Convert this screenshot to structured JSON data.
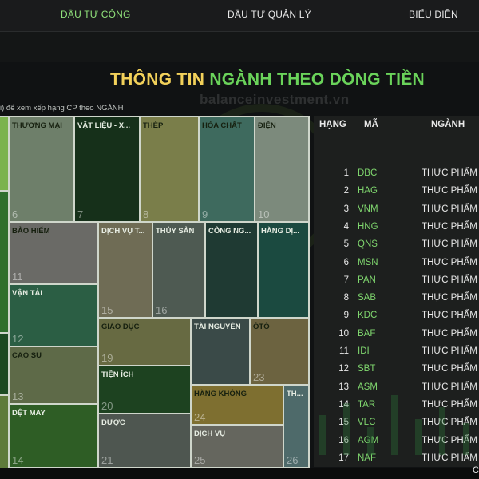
{
  "nav": {
    "items": [
      "ĐẦU TƯ CÔNG",
      "ĐẦU TƯ QUẢN LÝ",
      "BIỂU DIỄN"
    ]
  },
  "header": {
    "title_part1": "THÔNG TIN ",
    "title_part2": "NGÀNH THEO ",
    "title_part3": "DÒNG TIỀN",
    "watermark": "balanceinvestment.vn",
    "hint": "i) để xem xếp hạng CP theo NGÀNH"
  },
  "colors": {
    "accent_green": "#7fd66e",
    "title_yellow": "#f2d15a"
  },
  "treemap": {
    "cells": [
      {
        "name": "THƯƠNG MẠI",
        "num": "6"
      },
      {
        "name": "VẬT LIỆU - X...",
        "num": "7"
      },
      {
        "name": "THÉP",
        "num": "8"
      },
      {
        "name": "HÓA CHẤT",
        "num": "9"
      },
      {
        "name": "ĐIỆN",
        "num": "10"
      },
      {
        "name": "BẢO HIỂM",
        "num": "11"
      },
      {
        "name": "DỊCH VỤ T...",
        "num": "15"
      },
      {
        "name": "THỦY SẢN",
        "num": "16"
      },
      {
        "name": "CÔNG NG...",
        "num": ""
      },
      {
        "name": "HÀNG DỊ...",
        "num": ""
      },
      {
        "name": "VẬN TẢI",
        "num": "12"
      },
      {
        "name": "GIÁO DỤC",
        "num": "19"
      },
      {
        "name": "TÀI NGUYÊN",
        "num": ""
      },
      {
        "name": "ÔTÔ",
        "num": "23"
      },
      {
        "name": "CAO SU",
        "num": "13"
      },
      {
        "name": "TIỆN ÍCH",
        "num": "20"
      },
      {
        "name": "HÀNG KHÔNG",
        "num": "24"
      },
      {
        "name": "TH...",
        "num": ""
      },
      {
        "name": "DỆT MAY",
        "num": "14"
      },
      {
        "name": "DƯỢC",
        "num": "21"
      },
      {
        "name": "DỊCH VỤ",
        "num": "25"
      },
      {
        "name": "",
        "num": "26"
      },
      {
        "name": "",
        "num": ""
      },
      {
        "name": "",
        "num": ""
      },
      {
        "name": "",
        "num": ""
      }
    ]
  },
  "table": {
    "headers": {
      "rank": "HẠNG",
      "code": "MÃ",
      "sector": "NGÀNH"
    },
    "rows": [
      {
        "rank": "1",
        "code": "DBC",
        "sector": "THỰC PHẨM"
      },
      {
        "rank": "2",
        "code": "HAG",
        "sector": "THỰC PHẨM"
      },
      {
        "rank": "3",
        "code": "VNM",
        "sector": "THỰC PHẨM"
      },
      {
        "rank": "4",
        "code": "HNG",
        "sector": "THỰC PHẨM"
      },
      {
        "rank": "5",
        "code": "QNS",
        "sector": "THỰC PHẨM"
      },
      {
        "rank": "6",
        "code": "MSN",
        "sector": "THỰC PHẨM"
      },
      {
        "rank": "7",
        "code": "PAN",
        "sector": "THỰC PHẨM"
      },
      {
        "rank": "8",
        "code": "SAB",
        "sector": "THỰC PHẨM"
      },
      {
        "rank": "9",
        "code": "KDC",
        "sector": "THỰC PHẨM"
      },
      {
        "rank": "10",
        "code": "BAF",
        "sector": "THỰC PHẨM"
      },
      {
        "rank": "11",
        "code": "IDI",
        "sector": "THỰC PHẨM"
      },
      {
        "rank": "12",
        "code": "SBT",
        "sector": "THỰC PHẨM"
      },
      {
        "rank": "13",
        "code": "ASM",
        "sector": "THỰC PHẨM"
      },
      {
        "rank": "14",
        "code": "TAR",
        "sector": "THỰC PHẨM"
      },
      {
        "rank": "15",
        "code": "VLC",
        "sector": "THỰC PHẨM"
      },
      {
        "rank": "16",
        "code": "AGM",
        "sector": "THỰC PHẨM"
      },
      {
        "rank": "17",
        "code": "NAF",
        "sector": "THỰC PHẨM"
      }
    ]
  },
  "footer": {
    "corner_char": "C"
  }
}
